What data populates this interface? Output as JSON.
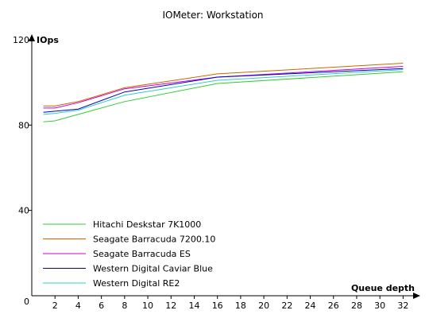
{
  "chart_data": {
    "type": "line",
    "title": "IOMeter: Workstation",
    "ylabel": "IOps",
    "xlabel": "Queue depth",
    "xlim": [
      0,
      33
    ],
    "ylim": [
      0,
      120
    ],
    "x_ticks": [
      2,
      4,
      6,
      8,
      10,
      12,
      14,
      16,
      18,
      20,
      22,
      24,
      26,
      28,
      30,
      32
    ],
    "y_ticks": [
      0,
      40,
      80,
      120
    ],
    "grid": false,
    "legend_position": "bottom-left",
    "x": [
      1,
      2,
      4,
      8,
      16,
      32
    ],
    "series": [
      {
        "name": "Hitachi Deskstar 7K1000",
        "color": "#33cc33",
        "values": [
          81.5,
          82,
          85,
          91,
          99.5,
          105
        ]
      },
      {
        "name": "Seagate Barracuda 7200.10",
        "color": "#cc6600",
        "values": [
          89,
          89,
          91,
          97.5,
          104,
          109
        ]
      },
      {
        "name": "Seagate Barracuda ES",
        "color": "#cc00cc",
        "values": [
          88,
          88,
          90.5,
          97,
          102.5,
          107.5
        ]
      },
      {
        "name": "Western Digital Caviar Blue",
        "color": "#0000cc",
        "values": [
          86,
          86.5,
          87.5,
          95.5,
          102.5,
          106.5
        ]
      },
      {
        "name": "Western Digital RE2",
        "color": "#33cccc",
        "values": [
          85,
          85.5,
          87,
          94,
          101,
          106
        ]
      }
    ]
  }
}
